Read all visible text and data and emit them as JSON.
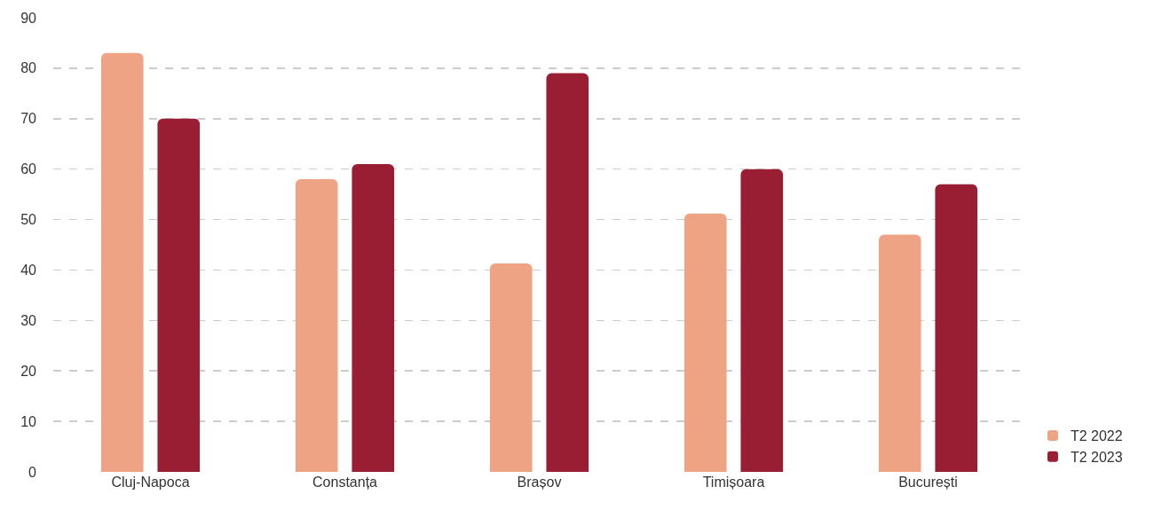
{
  "chart_data": {
    "type": "bar",
    "categories": [
      "Cluj-Napoca",
      "Constanța",
      "Brașov",
      "Timișoara",
      "București"
    ],
    "series": [
      {
        "name": "T2 2022",
        "color": "#efa385",
        "values": [
          83,
          58,
          41.3,
          51.2,
          47
        ]
      },
      {
        "name": "T2 2023",
        "color": "#991d33",
        "values": [
          70,
          61,
          79,
          60,
          57
        ]
      }
    ],
    "ylim": [
      0,
      90
    ],
    "yticks": [
      0,
      10,
      20,
      30,
      40,
      50,
      60,
      70,
      80,
      90
    ],
    "grid": "y",
    "legend": "bottom right"
  }
}
